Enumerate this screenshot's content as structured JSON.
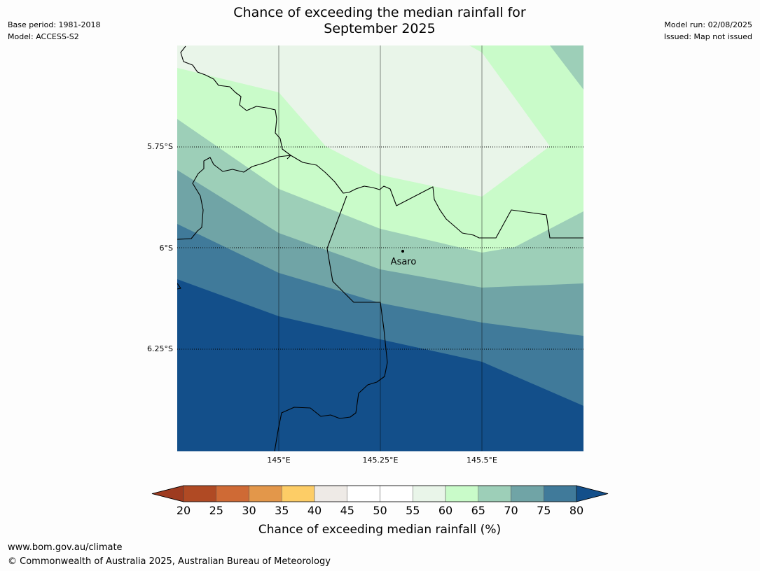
{
  "meta": {
    "base_period": "Base period: 1981-2018",
    "model": "Model: ACCESS-S2",
    "model_run": "Model run: 02/08/2025",
    "issued": "Issued: Map not issued"
  },
  "title_lines": [
    "Chance of exceeding the median rainfall for",
    "September 2025"
  ],
  "map": {
    "longitude_labels": [
      "145°E",
      "145.25°E",
      "145.5°E"
    ],
    "latitude_labels": [
      "5.75°S",
      "6°S",
      "6.25°S"
    ],
    "place": {
      "name": "Asaro"
    },
    "land_color": "#143f66"
  },
  "colorbar": {
    "label": "Chance of exceeding median rainfall (%)",
    "ticks": [
      "20",
      "25",
      "30",
      "35",
      "40",
      "45",
      "50",
      "55",
      "60",
      "65",
      "70",
      "75",
      "80"
    ],
    "colors": [
      "#9e3b20",
      "#b04a24",
      "#cf6a35",
      "#e3974a",
      "#fdcd66",
      "#eeeae6",
      "#ffffff",
      "#ffffff",
      "#e9f5e9",
      "#c9fbc9",
      "#9dcfb8",
      "#70a4a6",
      "#407a9a",
      "#134f8a"
    ],
    "extend": "both"
  },
  "footer": {
    "url": "www.bom.gov.au/climate",
    "copyright": "© Commonwealth of Australia 2025, Australian Bureau of Meteorology"
  }
}
